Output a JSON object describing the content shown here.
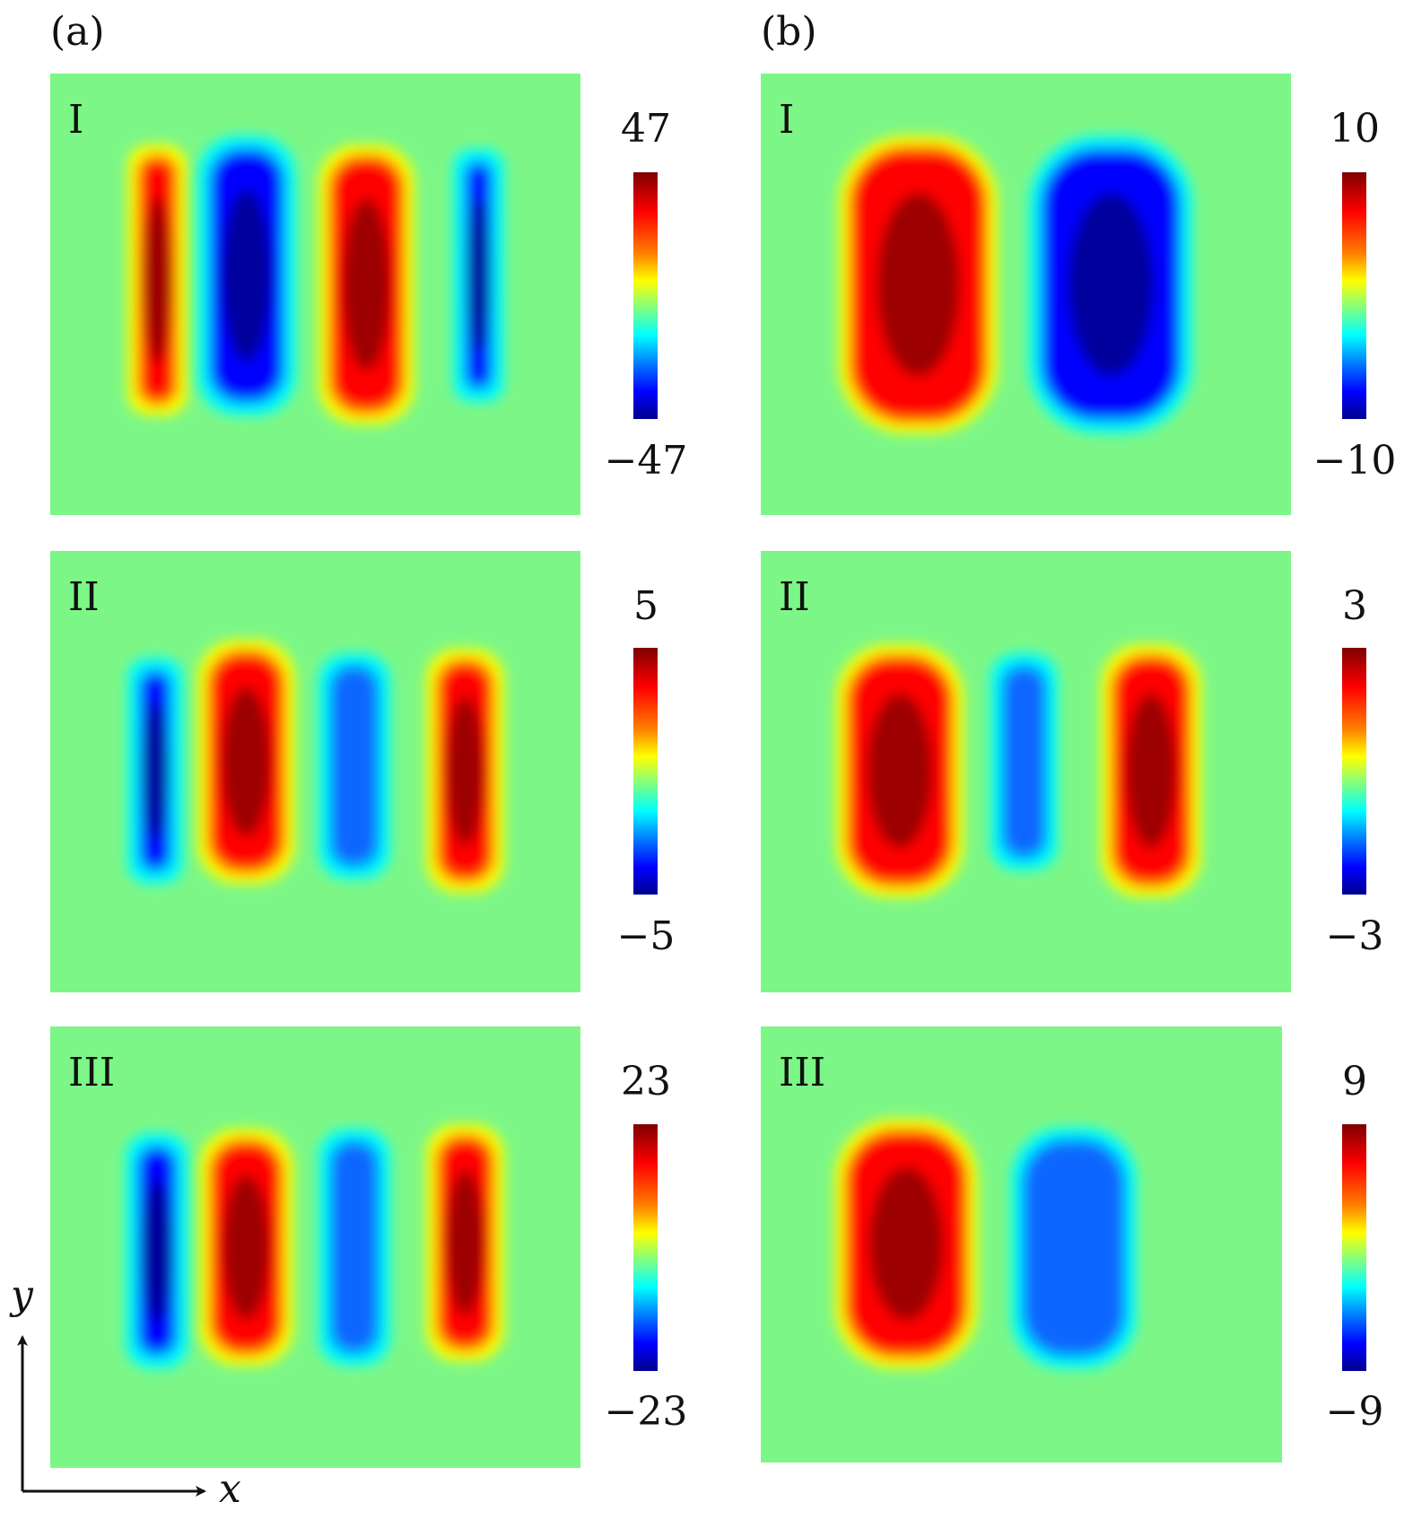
{
  "columns": [
    {
      "label": "(a)",
      "panels": [
        {
          "label": "I",
          "colorbar": {
            "max": "47",
            "min": "−47"
          }
        },
        {
          "label": "II",
          "colorbar": {
            "max": "5",
            "min": "−5"
          }
        },
        {
          "label": "III",
          "colorbar": {
            "max": "23",
            "min": "−23"
          }
        }
      ]
    },
    {
      "label": "(b)",
      "panels": [
        {
          "label": "I",
          "colorbar": {
            "max": "10",
            "min": "−10"
          }
        },
        {
          "label": "II",
          "colorbar": {
            "max": "3",
            "min": "−3"
          }
        },
        {
          "label": "III",
          "colorbar": {
            "max": "9",
            "min": "−9"
          }
        }
      ]
    }
  ],
  "axes": {
    "x_label": "x",
    "y_label": "y"
  },
  "colors": {
    "background": "#7CF787",
    "dark_red": "#8B0000",
    "red": "#FF0000",
    "orange": "#FF8000",
    "yellow": "#FFFF00",
    "cyan": "#00FFFF",
    "blue": "#0000FF",
    "dark_blue": "#00008B"
  }
}
